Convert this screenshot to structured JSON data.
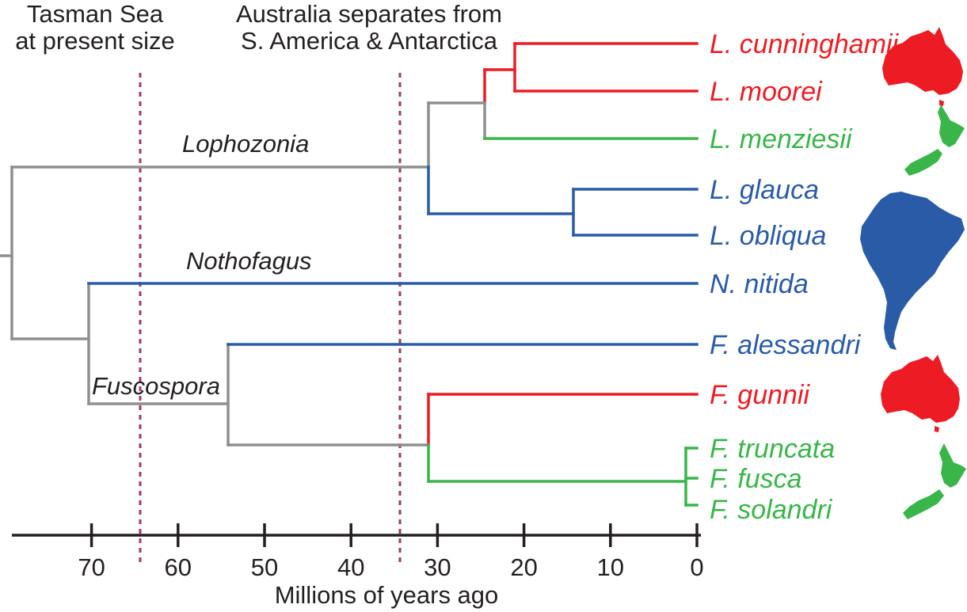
{
  "colors": {
    "gray": "#8f8f8f",
    "red": "#ed1c24",
    "green": "#39b54a",
    "blue": "#2a5ba6",
    "event_line": "#9e3a6b",
    "axis": "#231f20"
  },
  "events": [
    {
      "line1": "Tasman Sea",
      "line2": "at present size",
      "mya": 65
    },
    {
      "line1": "Australia separates from",
      "line2": "S. America & Antarctica",
      "mya": 35
    }
  ],
  "clades": [
    "Lophozonia",
    "Nothofagus",
    "Fuscospora"
  ],
  "taxa": [
    {
      "name": "L. cunninghamii",
      "region": "australia"
    },
    {
      "name": "L. moorei",
      "region": "australia"
    },
    {
      "name": "L. menziesii",
      "region": "new-zealand"
    },
    {
      "name": "L. glauca",
      "region": "south-america"
    },
    {
      "name": "L. obliqua",
      "region": "south-america"
    },
    {
      "name": "N. nitida",
      "region": "south-america"
    },
    {
      "name": "F. alessandri",
      "region": "south-america"
    },
    {
      "name": "F. gunnii",
      "region": "australia"
    },
    {
      "name": "F. truncata",
      "region": "new-zealand"
    },
    {
      "name": "F. fusca",
      "region": "new-zealand"
    },
    {
      "name": "F. solandri",
      "region": "new-zealand"
    }
  ],
  "node_ages_mya": {
    "root": 80,
    "lophozonia": 31,
    "aus_nz": 25,
    "cunninghamii_moorei": 21.5,
    "glauca_obliqua": 14.5,
    "nothofagus_fuscospora": 71,
    "fuscospora": 55,
    "gunnii_nz": 31,
    "nz_fuscospora": 1.5
  },
  "axis": {
    "ticks": [
      "70",
      "60",
      "50",
      "40",
      "30",
      "20",
      "10",
      "0"
    ],
    "title": "Millions of years ago"
  },
  "maps": [
    {
      "region": "australia",
      "color_key": "red"
    },
    {
      "region": "new-zealand",
      "color_key": "green"
    },
    {
      "region": "south-america",
      "color_key": "blue"
    },
    {
      "region": "australia",
      "color_key": "red"
    },
    {
      "region": "new-zealand",
      "color_key": "green"
    }
  ]
}
